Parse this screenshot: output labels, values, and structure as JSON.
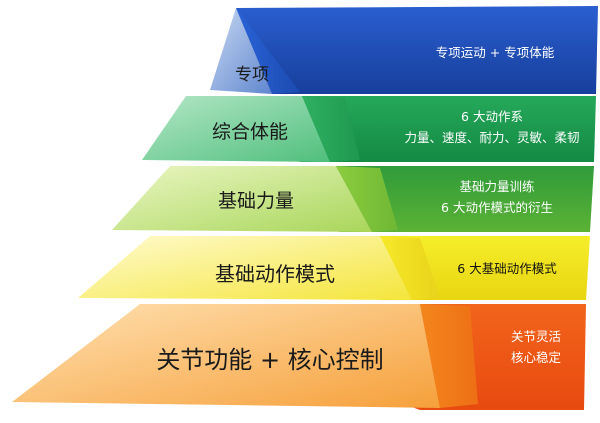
{
  "pyramid": {
    "levels": [
      {
        "label": "专项",
        "description": [
          "专项运动 + 专项体能"
        ],
        "color": "#1f4fb4"
      },
      {
        "label": "综合体能",
        "description": [
          "6 大动作系",
          "力量、速度、耐力、灵敏、柔韧"
        ],
        "color": "#1f9a4e"
      },
      {
        "label": "基础力量",
        "description": [
          "基础力量训练",
          "6 大动作模式的衍生"
        ],
        "color": "#86c33b"
      },
      {
        "label": "基础动作模式",
        "description": [
          "6 大基础动作模式"
        ],
        "color": "#f2e41c"
      },
      {
        "label": "关节功能 + 核心控制",
        "description": [
          "关节灵活",
          "核心稳定"
        ],
        "color": "#f07a13"
      }
    ]
  }
}
